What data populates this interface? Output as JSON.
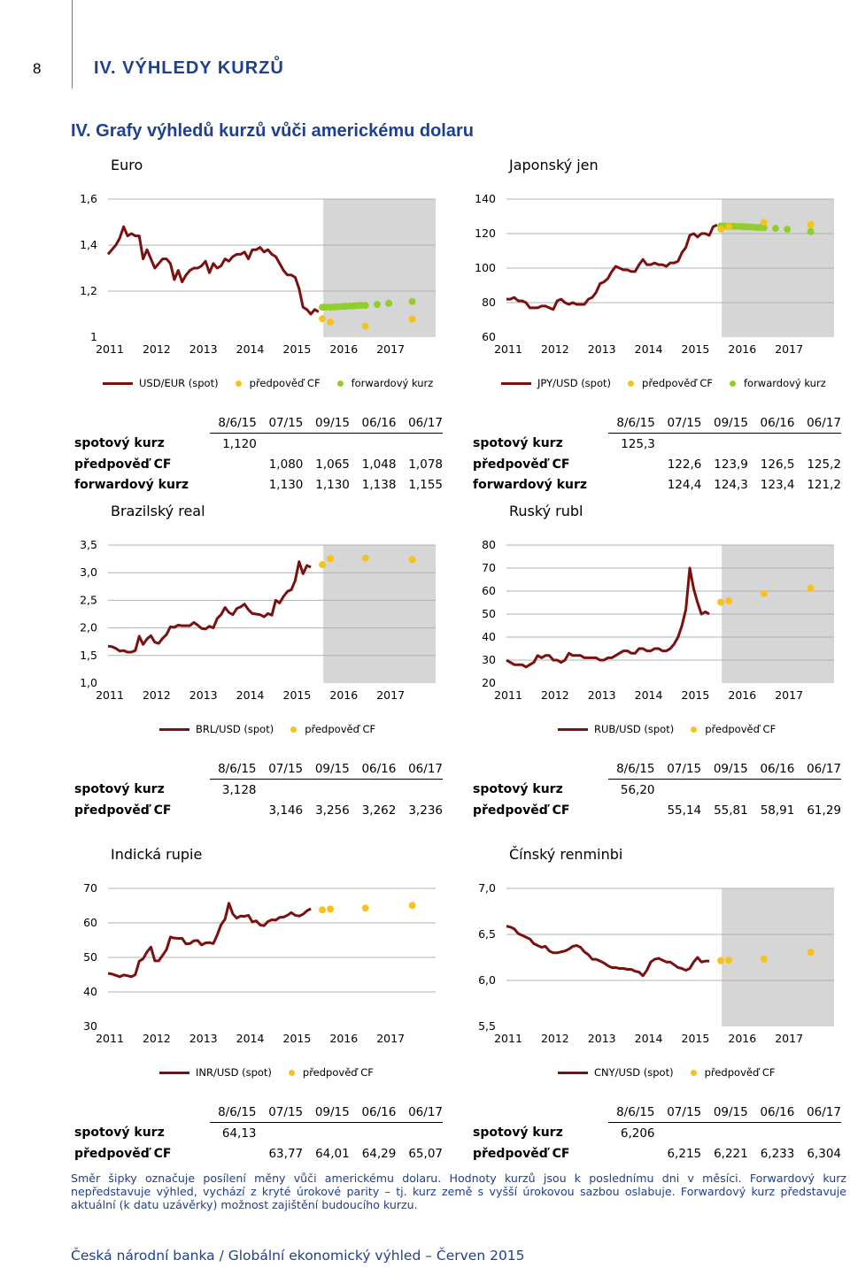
{
  "page": {
    "number": "8",
    "chapter": "IV. VÝHLEDY KURZŮ",
    "section_title": "IV. Grafy výhledů kurzů vůči americkému dolaru",
    "footnote": "Směr šipky označuje posílení měny vůči americkému dolaru. Hodnoty kurzů jsou k poslednímu dni v měsíci. Forwardový kurz nepředstavuje výhled, vychází z kryté úrokové parity – tj. kurz země s vyšší úrokovou sazbou oslabuje. Forwardový kurz představuje aktuální (k datu uzávěrky) možnost zajištění budoucího kurzu.",
    "footer": "Česká národní banka / Globální ekonomický výhled – Červen 2015"
  },
  "colors": {
    "spot": "#7a1010",
    "forecast": "#f7c21b",
    "forward": "#92cd2e",
    "shade": "#d6d6d6",
    "title": "#1f3f8f"
  },
  "chart_data": [
    {
      "id": "eur",
      "type": "line",
      "title": "Euro",
      "years": [
        "2011",
        "2012",
        "2013",
        "2014",
        "2015",
        "2016",
        "2017"
      ],
      "yticks": [
        "1,6",
        "1,4",
        "1,2",
        "1"
      ],
      "ylim": [
        1.0,
        1.6
      ],
      "shade_from": 2015.6,
      "spot_series": [
        1.36,
        1.38,
        1.4,
        1.43,
        1.48,
        1.44,
        1.45,
        1.44,
        1.44,
        1.34,
        1.38,
        1.34,
        1.3,
        1.32,
        1.34,
        1.34,
        1.32,
        1.25,
        1.29,
        1.24,
        1.27,
        1.29,
        1.3,
        1.3,
        1.31,
        1.33,
        1.28,
        1.32,
        1.3,
        1.31,
        1.34,
        1.33,
        1.35,
        1.36,
        1.36,
        1.37,
        1.34,
        1.38,
        1.38,
        1.39,
        1.37,
        1.38,
        1.36,
        1.35,
        1.32,
        1.29,
        1.27,
        1.27,
        1.26,
        1.21,
        1.13,
        1.12,
        1.1,
        1.12,
        1.11
      ],
      "forecast": [
        [
          2015.58,
          1.08
        ],
        [
          2015.75,
          1.065
        ],
        [
          2016.5,
          1.048
        ],
        [
          2017.5,
          1.078
        ]
      ],
      "forward": [
        [
          2015.58,
          1.13
        ],
        [
          2015.66,
          1.13
        ],
        [
          2015.75,
          1.13
        ],
        [
          2015.83,
          1.131
        ],
        [
          2015.91,
          1.132
        ],
        [
          2016.0,
          1.133
        ],
        [
          2016.08,
          1.134
        ],
        [
          2016.16,
          1.135
        ],
        [
          2016.25,
          1.136
        ],
        [
          2016.33,
          1.137
        ],
        [
          2016.41,
          1.138
        ],
        [
          2016.5,
          1.138
        ],
        [
          2016.75,
          1.142
        ],
        [
          2017.0,
          1.147
        ],
        [
          2017.5,
          1.155
        ]
      ],
      "legend": {
        "spot": "USD/EUR (spot)",
        "forecast": "předpověď CF",
        "forward": "forwardový kurz"
      },
      "table": {
        "headers": [
          "8/6/15",
          "07/15",
          "09/15",
          "06/16",
          "06/17"
        ],
        "rows": [
          {
            "label": "spotový kurz",
            "values": [
              "1,120",
              "",
              "",
              "",
              ""
            ]
          },
          {
            "label": "předpověď CF",
            "values": [
              "",
              "1,080",
              "1,065",
              "1,048",
              "1,078"
            ]
          },
          {
            "label": "forwardový kurz",
            "values": [
              "",
              "1,130",
              "1,130",
              "1,138",
              "1,155"
            ]
          }
        ]
      }
    },
    {
      "id": "jpy",
      "type": "line",
      "title": "Japonský jen",
      "years": [
        "2011",
        "2012",
        "2013",
        "2014",
        "2015",
        "2016",
        "2017"
      ],
      "yticks": [
        "140",
        "120",
        "100",
        "80",
        "60"
      ],
      "ylim": [
        60,
        140
      ],
      "shade_from": 2015.6,
      "spot_series": [
        82,
        82,
        83,
        81,
        81,
        80,
        77,
        77,
        77,
        78,
        78,
        77,
        76,
        81,
        82,
        80,
        79,
        80,
        79,
        79,
        79,
        82,
        83,
        86,
        91,
        92,
        94,
        98,
        101,
        100,
        99,
        99,
        98,
        98,
        102,
        105,
        102,
        102,
        103,
        102,
        102,
        101,
        103,
        103,
        104,
        109,
        112,
        119,
        120,
        118,
        120,
        120,
        119,
        124,
        125
      ],
      "forecast": [
        [
          2015.58,
          122.6
        ],
        [
          2015.75,
          123.9
        ],
        [
          2016.5,
          126.5
        ],
        [
          2017.5,
          125.2
        ]
      ],
      "forward": [
        [
          2015.58,
          124.4
        ],
        [
          2015.66,
          124.4
        ],
        [
          2015.75,
          124.3
        ],
        [
          2015.83,
          124.3
        ],
        [
          2015.91,
          124.2
        ],
        [
          2016.0,
          124.1
        ],
        [
          2016.08,
          124.0
        ],
        [
          2016.16,
          123.9
        ],
        [
          2016.25,
          123.8
        ],
        [
          2016.33,
          123.6
        ],
        [
          2016.41,
          123.5
        ],
        [
          2016.5,
          123.4
        ],
        [
          2016.75,
          123.0
        ],
        [
          2017.0,
          122.5
        ],
        [
          2017.5,
          121.2
        ]
      ],
      "legend": {
        "spot": "JPY/USD (spot)",
        "forecast": "předpověď CF",
        "forward": "forwardový kurz"
      },
      "table": {
        "headers": [
          "8/6/15",
          "07/15",
          "09/15",
          "06/16",
          "06/17"
        ],
        "rows": [
          {
            "label": "spotový kurz",
            "values": [
              "125,3",
              "",
              "",
              "",
              ""
            ]
          },
          {
            "label": "předpověď CF",
            "values": [
              "",
              "122,6",
              "123,9",
              "126,5",
              "125,2"
            ]
          },
          {
            "label": "forwardový kurz",
            "values": [
              "",
              "124,4",
              "124,3",
              "123,4",
              "121,2"
            ]
          }
        ]
      }
    },
    {
      "id": "brl",
      "type": "line",
      "title": "Brazilský real",
      "years": [
        "2011",
        "2012",
        "2013",
        "2014",
        "2015",
        "2016",
        "2017"
      ],
      "yticks": [
        "3,5",
        "3,0",
        "2,5",
        "2,0",
        "1,5",
        "1,0"
      ],
      "ylim": [
        1.0,
        3.5
      ],
      "shade_from": 2015.6,
      "spot_series": [
        1.67,
        1.66,
        1.63,
        1.58,
        1.59,
        1.56,
        1.56,
        1.59,
        1.85,
        1.7,
        1.8,
        1.86,
        1.74,
        1.72,
        1.81,
        1.88,
        2.02,
        2.01,
        2.05,
        2.04,
        2.04,
        2.04,
        2.1,
        2.05,
        1.99,
        1.98,
        2.03,
        2.0,
        2.17,
        2.24,
        2.37,
        2.28,
        2.24,
        2.35,
        2.38,
        2.43,
        2.33,
        2.26,
        2.25,
        2.24,
        2.2,
        2.26,
        2.23,
        2.5,
        2.45,
        2.57,
        2.66,
        2.69,
        2.86,
        3.2,
        2.98,
        3.13,
        3.1
      ],
      "forecast": [
        [
          2015.58,
          3.146
        ],
        [
          2015.75,
          3.256
        ],
        [
          2016.5,
          3.262
        ],
        [
          2017.5,
          3.236
        ]
      ],
      "legend": {
        "spot": "BRL/USD (spot)",
        "forecast": "předpověď CF"
      },
      "table": {
        "headers": [
          "8/6/15",
          "07/15",
          "09/15",
          "06/16",
          "06/17"
        ],
        "rows": [
          {
            "label": "spotový kurz",
            "values": [
              "3,128",
              "",
              "",
              "",
              ""
            ]
          },
          {
            "label": "předpověď CF",
            "values": [
              "",
              "3,146",
              "3,256",
              "3,262",
              "3,236"
            ]
          }
        ]
      }
    },
    {
      "id": "rub",
      "type": "line",
      "title": "Ruský rubl",
      "years": [
        "2011",
        "2012",
        "2013",
        "2014",
        "2015",
        "2016",
        "2017"
      ],
      "yticks": [
        "80",
        "70",
        "60",
        "50",
        "40",
        "30",
        "20"
      ],
      "ylim": [
        20,
        80
      ],
      "shade_from": 2015.6,
      "spot_series": [
        30,
        29,
        28,
        28,
        28,
        27,
        28,
        29,
        32,
        31,
        32,
        32,
        30,
        30,
        29,
        30,
        33,
        32,
        32,
        32,
        31,
        31,
        31,
        31,
        30,
        30,
        31,
        31,
        32,
        33,
        34,
        34,
        33,
        33,
        35,
        35,
        34,
        34,
        35,
        35,
        34,
        34,
        35,
        37,
        40,
        45,
        52,
        70,
        61,
        55,
        50,
        51,
        50
      ],
      "forecast": [
        [
          2015.58,
          55.14
        ],
        [
          2015.75,
          55.81
        ],
        [
          2016.5,
          58.91
        ],
        [
          2017.5,
          61.29
        ]
      ],
      "legend": {
        "spot": "RUB/USD (spot)",
        "forecast": "předpověď CF"
      },
      "table": {
        "headers": [
          "8/6/15",
          "07/15",
          "09/15",
          "06/16",
          "06/17"
        ],
        "rows": [
          {
            "label": "spotový kurz",
            "values": [
              "56,20",
              "",
              "",
              "",
              ""
            ]
          },
          {
            "label": "předpověď CF",
            "values": [
              "",
              "55,14",
              "55,81",
              "58,91",
              "61,29"
            ]
          }
        ]
      }
    },
    {
      "id": "inr",
      "type": "line",
      "title": "Indická rupie",
      "years": [
        "2011",
        "2012",
        "2013",
        "2014",
        "2015",
        "2016",
        "2017"
      ],
      "yticks": [
        "70",
        "60",
        "50",
        "40",
        "30"
      ],
      "ylim": [
        30,
        70
      ],
      "shade_from": null,
      "spot_series": [
        45.4,
        45.2,
        44.8,
        44.4,
        44.9,
        44.7,
        44.4,
        45.0,
        48.9,
        49.6,
        51.6,
        53.0,
        49.0,
        49.0,
        50.6,
        52.3,
        55.9,
        55.6,
        55.5,
        55.5,
        53.9,
        54.0,
        54.8,
        54.9,
        53.6,
        54.2,
        54.3,
        54.0,
        56.5,
        59.5,
        61.1,
        65.7,
        62.6,
        61.4,
        62.0,
        61.9,
        62.2,
        60.3,
        60.6,
        59.4,
        59.2,
        60.4,
        60.9,
        60.8,
        61.6,
        61.7,
        62.2,
        63.0,
        62.2,
        62.0,
        62.5,
        63.5,
        64.1
      ],
      "forecast": [
        [
          2015.58,
          63.77
        ],
        [
          2015.75,
          64.01
        ],
        [
          2016.5,
          64.29
        ],
        [
          2017.5,
          65.07
        ]
      ],
      "legend": {
        "spot": "INR/USD (spot)",
        "forecast": "předpověď CF"
      },
      "table": {
        "headers": [
          "8/6/15",
          "07/15",
          "09/15",
          "06/16",
          "06/17"
        ],
        "rows": [
          {
            "label": "spotový kurz",
            "values": [
              "64,13",
              "",
              "",
              "",
              ""
            ]
          },
          {
            "label": "předpověď CF",
            "values": [
              "",
              "63,77",
              "64,01",
              "64,29",
              "65,07"
            ]
          }
        ]
      }
    },
    {
      "id": "cny",
      "type": "line",
      "title": "Čínský renminbi",
      "years": [
        "2011",
        "2012",
        "2013",
        "2014",
        "2015",
        "2016",
        "2017"
      ],
      "yticks": [
        "7,0",
        "6,5",
        "6,0",
        "5,5"
      ],
      "ylim": [
        5.5,
        7.0
      ],
      "shade_from": 2015.6,
      "spot_series": [
        6.59,
        6.58,
        6.56,
        6.51,
        6.49,
        6.47,
        6.45,
        6.4,
        6.38,
        6.36,
        6.37,
        6.32,
        6.3,
        6.3,
        6.31,
        6.32,
        6.34,
        6.37,
        6.38,
        6.36,
        6.31,
        6.28,
        6.23,
        6.23,
        6.21,
        6.19,
        6.16,
        6.14,
        6.14,
        6.13,
        6.13,
        6.12,
        6.12,
        6.1,
        6.09,
        6.05,
        6.11,
        6.2,
        6.23,
        6.24,
        6.22,
        6.2,
        6.2,
        6.17,
        6.14,
        6.13,
        6.11,
        6.13,
        6.2,
        6.25,
        6.2,
        6.21,
        6.21
      ],
      "forecast": [
        [
          2015.58,
          6.215
        ],
        [
          2015.75,
          6.221
        ],
        [
          2016.5,
          6.233
        ],
        [
          2017.5,
          6.304
        ]
      ],
      "legend": {
        "spot": "CNY/USD (spot)",
        "forecast": "předpověď CF"
      },
      "table": {
        "headers": [
          "8/6/15",
          "07/15",
          "09/15",
          "06/16",
          "06/17"
        ],
        "rows": [
          {
            "label": "spotový kurz",
            "values": [
              "6,206",
              "",
              "",
              "",
              ""
            ]
          },
          {
            "label": "předpověď CF",
            "values": [
              "",
              "6,215",
              "6,221",
              "6,233",
              "6,304"
            ]
          }
        ]
      }
    }
  ]
}
